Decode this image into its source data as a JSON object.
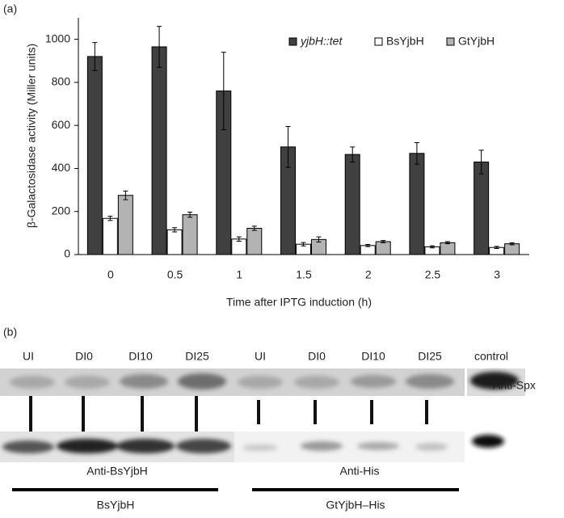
{
  "chart_data": {
    "type": "bar",
    "panel_label": "(a)",
    "y_label": "β-Galactosidase activity (Miller units)",
    "x_label": "Time after IPTG induction (h)",
    "categories": [
      "0",
      "0.5",
      "1",
      "1.5",
      "2",
      "2.5",
      "3"
    ],
    "series": [
      {
        "name": "yjbH::tet",
        "color": "#404040",
        "values": [
          920,
          965,
          760,
          500,
          465,
          470,
          430
        ],
        "errors": [
          65,
          95,
          180,
          95,
          35,
          50,
          55
        ]
      },
      {
        "name": "BsYjbH",
        "color": "#ffffff",
        "values": [
          168,
          115,
          72,
          48,
          42,
          36,
          33
        ],
        "errors": [
          10,
          10,
          10,
          8,
          5,
          5,
          5
        ]
      },
      {
        "name": "GtYjbH",
        "color": "#b3b3b3",
        "values": [
          275,
          185,
          122,
          70,
          60,
          55,
          50
        ],
        "errors": [
          20,
          12,
          10,
          12,
          5,
          5,
          5
        ]
      }
    ],
    "ylim": [
      0,
      1100
    ],
    "yticks": [
      0,
      200,
      400,
      600,
      800,
      1000
    ],
    "grid": false,
    "legend": "top-right"
  },
  "panel_b": {
    "label": "(b)",
    "lanes": [
      "UI",
      "DI0",
      "DI10",
      "DI25",
      "UI",
      "DI0",
      "DI10",
      "DI25",
      "control"
    ],
    "antibody_top": "Anti-Spx",
    "antibody_left": "Anti-BsYjbH",
    "antibody_right": "Anti-His",
    "group_left": "BsYjbH",
    "group_right": "GtYjbH–His"
  }
}
